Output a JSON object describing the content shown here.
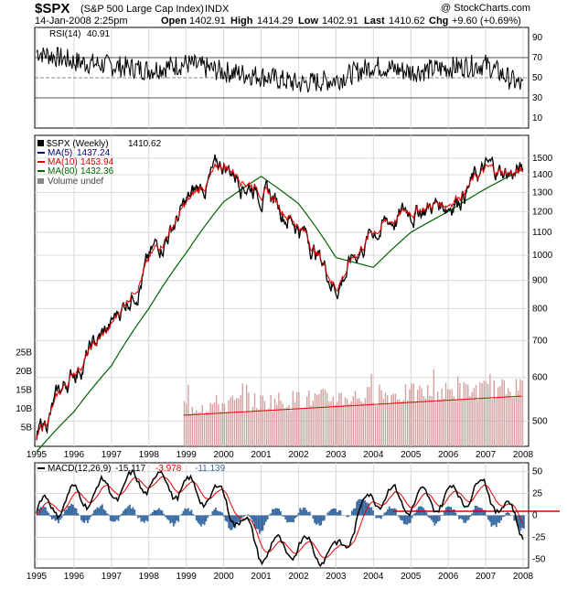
{
  "header": {
    "symbol": "$SPX",
    "name": "(S&P 500 Large Cap Index)",
    "exchange": "INDX",
    "watermark": "@ StockCharts.com",
    "datetime": "14-Jan-2008 2:25pm",
    "open_label": "Open",
    "open": "1402.91",
    "high_label": "High",
    "high": "1414.29",
    "low_label": "Low",
    "low": "1402.91",
    "last_label": "Last",
    "last": "1410.62",
    "chg_label": "Chg",
    "chg": "+9.60 (+0.69%)"
  },
  "rsi_panel": {
    "label": "RSI(14)",
    "value": "40.91",
    "y_ticks": [
      "90",
      "70",
      "50",
      "30",
      "10"
    ]
  },
  "price_panel": {
    "legend_title": "$SPX (Weekly)",
    "legend_value": "1410.62",
    "legend": [
      {
        "label": "MA(5)",
        "value": "1437.24",
        "color": "#000080"
      },
      {
        "label": "MA(10)",
        "value": "1453.94",
        "color": "#e00000"
      },
      {
        "label": "MA(80)",
        "value": "1432.36",
        "color": "#006400"
      },
      {
        "label": "Volume undef",
        "value": "",
        "color": "#888888"
      }
    ],
    "y_ticks": [
      "1500",
      "1400",
      "1300",
      "1200",
      "1100",
      "1000",
      "900",
      "800",
      "700",
      "600",
      "500"
    ],
    "volume_ticks": [
      "25B",
      "20B",
      "15B",
      "10B",
      "5B"
    ]
  },
  "macd_panel": {
    "label": "MACD(12,26,9)",
    "macd": "-15.117",
    "signal": "-3.978",
    "hist": "-11.139",
    "y_ticks": [
      "50",
      "25",
      "0",
      "-25",
      "-50"
    ]
  },
  "x_labels": [
    "1995",
    "1996",
    "1997",
    "1998",
    "1999",
    "2000",
    "2001",
    "2002",
    "2003",
    "2004",
    "2005",
    "2006",
    "2007",
    "2008"
  ],
  "colors": {
    "price": "#000000",
    "ma5": "#000080",
    "ma10": "#e00000",
    "ma80": "#006400",
    "volume": "#c89090",
    "rsi_fill": "#5a7a5a",
    "macd_hist": "#3a6aa0",
    "zero_line": "#e00000"
  },
  "chart_data": [
    {
      "type": "line",
      "title": "RSI(14)",
      "x": [
        "1995",
        "1996",
        "1997",
        "1998",
        "1999",
        "2000",
        "2001",
        "2002",
        "2003",
        "2004",
        "2005",
        "2006",
        "2007",
        "2008"
      ],
      "series": [
        {
          "name": "RSI(14)",
          "values": [
            76,
            66,
            62,
            58,
            64,
            56,
            52,
            44,
            48,
            62,
            56,
            60,
            63,
            41
          ]
        }
      ],
      "ylim": [
        0,
        100
      ]
    },
    {
      "type": "line",
      "title": "$SPX (Weekly)",
      "x": [
        "1995",
        "1996",
        "1997",
        "1998",
        "1999",
        "2000",
        "2001",
        "2002",
        "2003",
        "2004",
        "2005",
        "2006",
        "2007",
        "2008"
      ],
      "series": [
        {
          "name": "$SPX",
          "values": [
            460,
            615,
            740,
            970,
            1230,
            1460,
            1320,
            1140,
            880,
            1110,
            1210,
            1250,
            1420,
            1410
          ]
        },
        {
          "name": "MA(80)",
          "values": [
            440,
            520,
            630,
            800,
            1010,
            1250,
            1390,
            1240,
            990,
            950,
            1100,
            1200,
            1320,
            1432
          ]
        }
      ],
      "ylim": [
        450,
        1600
      ]
    },
    {
      "type": "line",
      "title": "MACD(12,26,9)",
      "x": [
        "1995",
        "1996",
        "1997",
        "1998",
        "1999",
        "2000",
        "2001",
        "2002",
        "2003",
        "2004",
        "2005",
        "2006",
        "2007",
        "2008"
      ],
      "series": [
        {
          "name": "MACD(12,26,9)",
          "values": [
            5,
            20,
            30,
            40,
            30,
            20,
            -40,
            -35,
            -45,
            25,
            15,
            20,
            30,
            -15
          ]
        }
      ],
      "ylim": [
        -60,
        60
      ]
    }
  ]
}
